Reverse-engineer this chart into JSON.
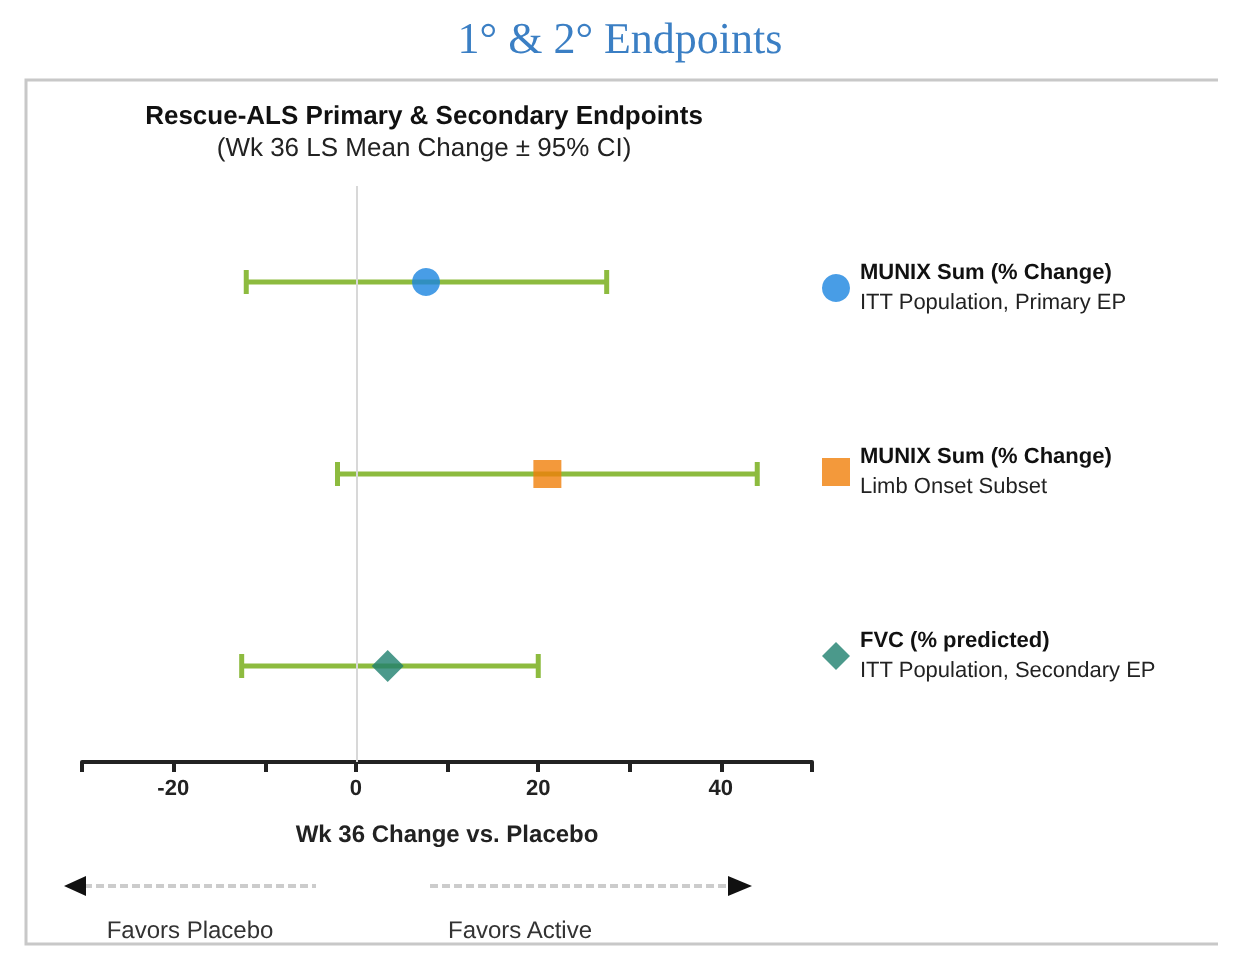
{
  "chart_data": {
    "type": "scatter",
    "orientation": "horizontal",
    "title": "Rescue-ALS Primary & Secondary Endpoints",
    "subtitle": "(Wk 36 LS Mean Change ± 95% CI)",
    "xlabel": "Wk 36 Change vs. Placebo",
    "annotations": [
      "1° & 2° Endpoints",
      "Favors Placebo",
      "Favors Active"
    ],
    "categories": [
      null,
      null,
      null
    ],
    "series": [
      {
        "name": "MUNIX Sum (% Change)\nITT Population, Primary EP",
        "color": "#1a85e0",
        "marker": "circle",
        "values": [
          7.7,
          null,
          null
        ],
        "errors": [
          [
            -12,
            27.5
          ],
          null,
          null
        ]
      },
      {
        "name": "MUNIX Sum (% Change)\nLimb Onset Subset",
        "color": "#f07f0a",
        "marker": "square",
        "values": [
          null,
          21,
          null
        ],
        "errors": [
          null,
          [
            -2,
            44
          ],
          null
        ]
      },
      {
        "name": "FVC (% predicted)\nITT Population, Secondary EP",
        "color": "#1e7f6e",
        "marker": "diamond",
        "values": [
          null,
          null,
          3.5
        ],
        "errors": [
          null,
          null,
          [
            -12.5,
            20
          ]
        ]
      }
    ],
    "xlim": [
      -30,
      50
    ],
    "xticks": [
      {
        "value": -30,
        "label": null
      },
      -20,
      {
        "value": -10,
        "label": null
      },
      0,
      {
        "value": 10,
        "label": null
      },
      20,
      {
        "value": 30,
        "label": null
      },
      40,
      {
        "value": 50,
        "label": null
      }
    ],
    "ref_lines": [
      {
        "axis": "x",
        "value": 0,
        "color": "#d8d8d8"
      }
    ],
    "grid": false,
    "legend": "right"
  }
}
